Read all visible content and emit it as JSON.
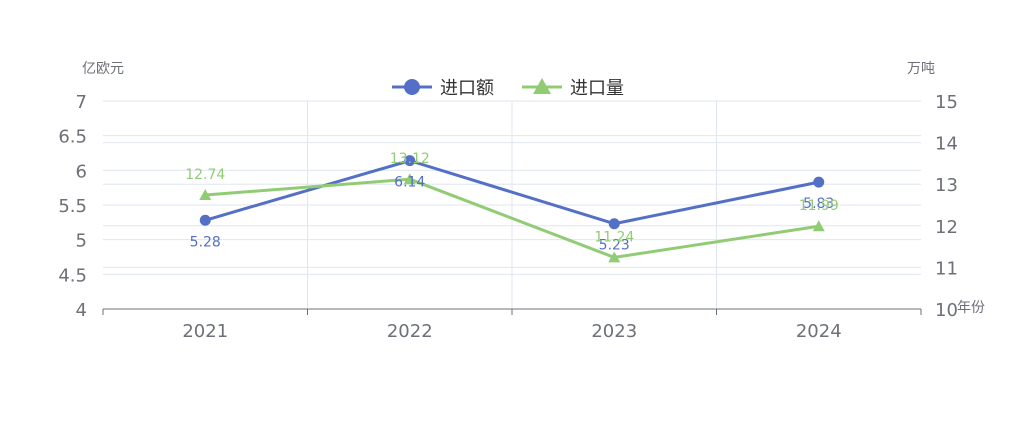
{
  "chart_data": {
    "type": "line",
    "categories": [
      "2021",
      "2022",
      "2023",
      "2024"
    ],
    "x_axis_name": "年份",
    "y_left": {
      "name": "亿欧元",
      "min": 4,
      "max": 7,
      "interval": 0.5,
      "ticks": [
        "4",
        "4.5",
        "5",
        "5.5",
        "6",
        "6.5",
        "7"
      ]
    },
    "y_right": {
      "name": "万吨",
      "min": 10,
      "max": 15,
      "interval": 1,
      "ticks": [
        "10",
        "11",
        "12",
        "13",
        "14",
        "15"
      ]
    },
    "series": [
      {
        "name": "进口额",
        "axis": "left",
        "marker": "circle",
        "color": "#5470c6",
        "values": [
          5.28,
          6.14,
          5.23,
          5.83
        ],
        "labels": [
          "5.28",
          "6.14",
          "5.23",
          "5.83"
        ],
        "label_position": "bottom"
      },
      {
        "name": "进口量",
        "axis": "right",
        "marker": "triangle",
        "color": "#91cc75",
        "values": [
          12.74,
          13.12,
          11.24,
          11.99
        ],
        "labels": [
          "12.74",
          "13.12",
          "11.24",
          "11.99"
        ],
        "label_position": "top"
      }
    ],
    "legend_position": "top-center",
    "grid": true
  }
}
